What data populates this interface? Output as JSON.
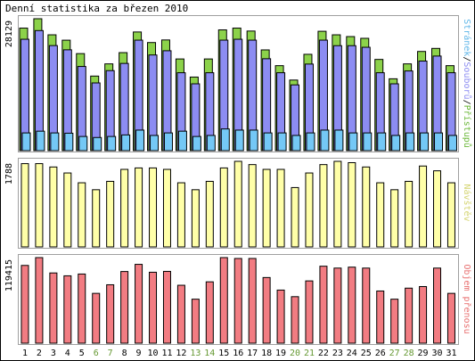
{
  "title": "Denní statistika za březen 2010",
  "colors": {
    "background": "#ffffff",
    "frame": "#000000",
    "panel_border": "#a0a0a0",
    "hits_fill": "#8cd24a",
    "files_fill": "#8c8cf2",
    "pages_fill": "#74c8f6",
    "visits_fill": "#ffffa8",
    "volume_fill": "#f27c82",
    "weekday_label": "#000000",
    "weekend_label": "#669933"
  },
  "chart_data": [
    {
      "type": "bar",
      "panel": "top",
      "max_label": "28129",
      "side_labels": [
        {
          "text": "Stránek",
          "color": "#5fb6e8"
        },
        {
          "text": "/",
          "color": "#000000"
        },
        {
          "text": "Souborů",
          "color": "#8c8cf2"
        },
        {
          "text": "/",
          "color": "#000000"
        },
        {
          "text": "Přístupů",
          "color": "#6cb83a"
        }
      ],
      "ylim": [
        0,
        28129
      ],
      "categories": [
        "1",
        "2",
        "3",
        "4",
        "5",
        "6",
        "7",
        "8",
        "9",
        "10",
        "11",
        "12",
        "13",
        "14",
        "15",
        "16",
        "17",
        "18",
        "19",
        "20",
        "21",
        "22",
        "23",
        "24",
        "25",
        "26",
        "27",
        "28",
        "29",
        "30",
        "31"
      ],
      "series": [
        {
          "name": "Přístupů",
          "color": "#8cd24a",
          "values": [
            26130,
            28129,
            24700,
            23550,
            20690,
            15900,
            18500,
            20900,
            25300,
            23050,
            23600,
            19550,
            15690,
            19550,
            25750,
            26130,
            25500,
            21480,
            18120,
            15050,
            20540,
            25450,
            24700,
            24320,
            23950,
            19450,
            15320,
            18500,
            21150,
            21800,
            18120
          ]
        },
        {
          "name": "Souborů",
          "color": "#8c8cf2",
          "values": [
            23750,
            25600,
            22400,
            21500,
            17950,
            14440,
            17060,
            18600,
            23560,
            20400,
            21300,
            16610,
            14250,
            16610,
            23560,
            23750,
            23560,
            19600,
            16610,
            14020,
            18460,
            23560,
            22380,
            22380,
            22040,
            16610,
            14250,
            16990,
            19100,
            20170,
            16610
          ]
        },
        {
          "name": "Stránek",
          "color": "#74c8f6",
          "values": [
            3780,
            4150,
            3780,
            3720,
            3020,
            2800,
            3020,
            3350,
            4380,
            3240,
            3780,
            4150,
            3020,
            3240,
            4630,
            4380,
            4380,
            3780,
            3780,
            3240,
            3780,
            4380,
            4380,
            3780,
            3780,
            3780,
            3240,
            3780,
            3780,
            3780,
            3240
          ]
        }
      ]
    },
    {
      "type": "bar",
      "panel": "middle",
      "max_label": "1788",
      "side_labels": [
        {
          "text": "Návštěv",
          "color": "#d4d470"
        }
      ],
      "ylim": [
        0,
        1788
      ],
      "categories": [
        "1",
        "2",
        "3",
        "4",
        "5",
        "6",
        "7",
        "8",
        "9",
        "10",
        "11",
        "12",
        "13",
        "14",
        "15",
        "16",
        "17",
        "18",
        "19",
        "20",
        "21",
        "22",
        "23",
        "24",
        "25",
        "26",
        "27",
        "28",
        "29",
        "30",
        "31"
      ],
      "series": [
        {
          "name": "Návštěv",
          "color": "#ffffa8",
          "values": [
            1740,
            1740,
            1670,
            1545,
            1340,
            1195,
            1370,
            1620,
            1650,
            1650,
            1620,
            1340,
            1195,
            1370,
            1650,
            1788,
            1720,
            1620,
            1620,
            1240,
            1545,
            1720,
            1788,
            1760,
            1670,
            1340,
            1195,
            1370,
            1690,
            1590,
            1340
          ]
        }
      ]
    },
    {
      "type": "bar",
      "panel": "bottom",
      "max_label": "119415",
      "side_labels": [
        {
          "text": "Objem přenosu",
          "color": "#e87070"
        }
      ],
      "ylim": [
        0,
        119415
      ],
      "categories": [
        "1",
        "2",
        "3",
        "4",
        "5",
        "6",
        "7",
        "8",
        "9",
        "10",
        "11",
        "12",
        "13",
        "14",
        "15",
        "16",
        "17",
        "18",
        "19",
        "20",
        "21",
        "22",
        "23",
        "24",
        "25",
        "26",
        "27",
        "28",
        "29",
        "30",
        "31"
      ],
      "series": [
        {
          "name": "Objem přenosu",
          "color": "#f27c82",
          "values": [
            108500,
            119415,
            98000,
            94000,
            96500,
            69500,
            81500,
            100000,
            110000,
            99000,
            100200,
            80800,
            61400,
            85600,
            119415,
            118200,
            118200,
            91600,
            74100,
            64900,
            86900,
            107400,
            104800,
            106100,
            104800,
            72800,
            61400,
            76800,
            79000,
            104800,
            69500
          ]
        }
      ]
    }
  ],
  "x_labels": [
    {
      "text": "1",
      "weekend": false
    },
    {
      "text": "2",
      "weekend": false
    },
    {
      "text": "3",
      "weekend": false
    },
    {
      "text": "4",
      "weekend": false
    },
    {
      "text": "5",
      "weekend": false
    },
    {
      "text": "6",
      "weekend": true
    },
    {
      "text": "7",
      "weekend": true
    },
    {
      "text": "8",
      "weekend": false
    },
    {
      "text": "9",
      "weekend": false
    },
    {
      "text": "10",
      "weekend": false
    },
    {
      "text": "11",
      "weekend": false
    },
    {
      "text": "12",
      "weekend": false
    },
    {
      "text": "13",
      "weekend": true
    },
    {
      "text": "14",
      "weekend": true
    },
    {
      "text": "15",
      "weekend": false
    },
    {
      "text": "16",
      "weekend": false
    },
    {
      "text": "17",
      "weekend": false
    },
    {
      "text": "18",
      "weekend": false
    },
    {
      "text": "19",
      "weekend": false
    },
    {
      "text": "20",
      "weekend": true
    },
    {
      "text": "21",
      "weekend": true
    },
    {
      "text": "22",
      "weekend": false
    },
    {
      "text": "23",
      "weekend": false
    },
    {
      "text": "24",
      "weekend": false
    },
    {
      "text": "25",
      "weekend": false
    },
    {
      "text": "26",
      "weekend": false
    },
    {
      "text": "27",
      "weekend": true
    },
    {
      "text": "28",
      "weekend": true
    },
    {
      "text": "29",
      "weekend": false
    },
    {
      "text": "30",
      "weekend": false
    },
    {
      "text": "31",
      "weekend": false
    }
  ]
}
